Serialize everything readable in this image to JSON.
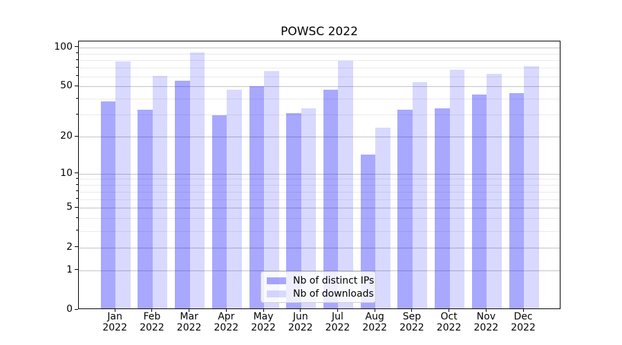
{
  "title": "POWSC 2022",
  "colors": {
    "background": "#ffffff",
    "text": "#000000",
    "spine": "#000000",
    "major_grid": "#c3c3c3",
    "minor_grid": "#eaeaea",
    "legend_border": "#cccccc",
    "legend_bg": "rgba(255,255,255,0.8)",
    "ips_bar_hex": "#a9a9fb",
    "downloads_bar_hex": "#d9d9f9"
  },
  "chart_data": {
    "type": "bar",
    "title": "POWSC 2022",
    "xlabel": "",
    "ylabel": "",
    "categories": [
      "Jan 2022",
      "Feb 2022",
      "Mar 2022",
      "Apr 2022",
      "May 2022",
      "Jun 2022",
      "Jul 2022",
      "Aug 2022",
      "Sep 2022",
      "Oct 2022",
      "Nov 2022",
      "Dec 2022"
    ],
    "series": [
      {
        "name": "Nb of distinct IPs",
        "color": "rgba(0,0,255,0.34)",
        "values": [
          37,
          32,
          54,
          29,
          49,
          30,
          46,
          14,
          32,
          33,
          42,
          43
        ]
      },
      {
        "name": "Nb of downloads",
        "color": "rgba(0,0,255,0.15)",
        "values": [
          76,
          59,
          89,
          46,
          64,
          33,
          77,
          23,
          53,
          66,
          61,
          70
        ]
      }
    ],
    "yscale": "log1p",
    "ylim": [
      0,
      112
    ],
    "y_major_ticks": [
      0,
      1,
      2,
      5,
      10,
      20,
      50,
      100
    ],
    "y_minor_ticks": [
      3,
      4,
      6,
      7,
      8,
      9,
      30,
      40,
      60,
      70,
      80,
      90
    ],
    "grid": true,
    "legend_position": "lower center"
  }
}
